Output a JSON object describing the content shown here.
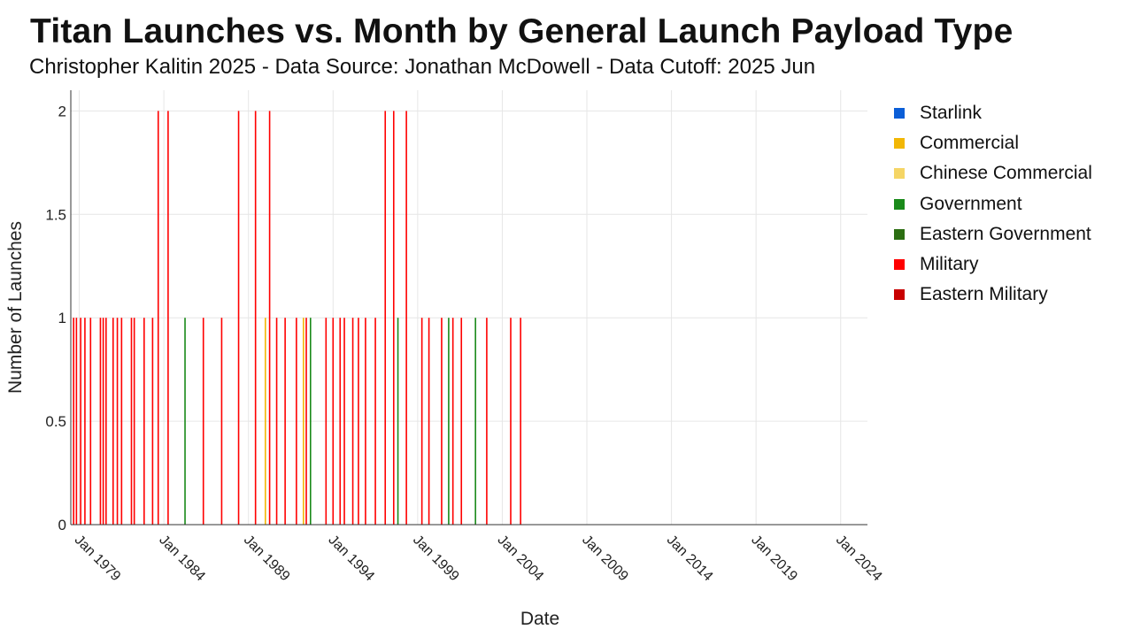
{
  "chart_data": {
    "type": "bar",
    "title": "Titan Launches vs. Month by General Launch Payload Type",
    "subtitle": "Christopher Kalitin 2025 - Data Source: Jonathan McDowell - Data Cutoff: 2025 Jun",
    "xlabel": "Date",
    "ylabel": "Number of Launches",
    "xlim": [
      "1978-07",
      "2025-08"
    ],
    "ylim": [
      0,
      2.1
    ],
    "x_ticks": [
      "Jan 1979",
      "Jan 1984",
      "Jan 1989",
      "Jan 1994",
      "Jan 1999",
      "Jan 2004",
      "Jan 2009",
      "Jan 2014",
      "Jan 2019",
      "Jan 2024"
    ],
    "y_ticks": [
      "0",
      "0.5",
      "1",
      "1.5",
      "2"
    ],
    "grid": true,
    "legend_position": "right",
    "stacked": true,
    "legend": [
      {
        "name": "Starlink",
        "color": "#0b5ed7"
      },
      {
        "name": "Commercial",
        "color": "#f2b705"
      },
      {
        "name": "Chinese Commercial",
        "color": "#f5d565"
      },
      {
        "name": "Government",
        "color": "#1a8a1a"
      },
      {
        "name": "Eastern Government",
        "color": "#2c6e12"
      },
      {
        "name": "Military",
        "color": "#ff0000"
      },
      {
        "name": "Eastern Military",
        "color": "#c80000"
      }
    ],
    "series": [
      {
        "name": "Military",
        "color": "#ff0000",
        "points": [
          {
            "x": "1978-09",
            "y": 1
          },
          {
            "x": "1978-11",
            "y": 1
          },
          {
            "x": "1979-02",
            "y": 1
          },
          {
            "x": "1979-05",
            "y": 1
          },
          {
            "x": "1979-09",
            "y": 1
          },
          {
            "x": "1980-04",
            "y": 1
          },
          {
            "x": "1980-06",
            "y": 1
          },
          {
            "x": "1980-08",
            "y": 1
          },
          {
            "x": "1981-01",
            "y": 1
          },
          {
            "x": "1981-04",
            "y": 1
          },
          {
            "x": "1981-07",
            "y": 1
          },
          {
            "x": "1982-02",
            "y": 1
          },
          {
            "x": "1982-04",
            "y": 1
          },
          {
            "x": "1982-11",
            "y": 1
          },
          {
            "x": "1983-05",
            "y": 1
          },
          {
            "x": "1983-09",
            "y": 2
          },
          {
            "x": "1984-04",
            "y": 2
          },
          {
            "x": "1986-05",
            "y": 1
          },
          {
            "x": "1987-06",
            "y": 1
          },
          {
            "x": "1988-06",
            "y": 2
          },
          {
            "x": "1989-06",
            "y": 2
          },
          {
            "x": "1990-04",
            "y": 2
          },
          {
            "x": "1990-09",
            "y": 1
          },
          {
            "x": "1991-03",
            "y": 1
          },
          {
            "x": "1991-11",
            "y": 1
          },
          {
            "x": "1992-06",
            "y": 1
          },
          {
            "x": "1993-08",
            "y": 1
          },
          {
            "x": "1994-01",
            "y": 1
          },
          {
            "x": "1994-06",
            "y": 1
          },
          {
            "x": "1994-09",
            "y": 1
          },
          {
            "x": "1995-03",
            "y": 1
          },
          {
            "x": "1995-07",
            "y": 1
          },
          {
            "x": "1995-12",
            "y": 1
          },
          {
            "x": "1996-07",
            "y": 1
          },
          {
            "x": "1997-02",
            "y": 2
          },
          {
            "x": "1997-08",
            "y": 2
          },
          {
            "x": "1998-05",
            "y": 2
          },
          {
            "x": "1999-04",
            "y": 1
          },
          {
            "x": "1999-09",
            "y": 1
          },
          {
            "x": "2000-06",
            "y": 1
          },
          {
            "x": "2001-02",
            "y": 1
          },
          {
            "x": "2001-08",
            "y": 1
          },
          {
            "x": "2003-02",
            "y": 1
          },
          {
            "x": "2004-07",
            "y": 1
          },
          {
            "x": "2005-02",
            "y": 1
          }
        ]
      },
      {
        "name": "Government",
        "color": "#1a8a1a",
        "points": [
          {
            "x": "1985-04",
            "y": 1
          },
          {
            "x": "1992-09",
            "y": 1
          },
          {
            "x": "1997-11",
            "y": 1
          },
          {
            "x": "2000-11",
            "y": 1
          },
          {
            "x": "2002-06",
            "y": 1
          }
        ]
      },
      {
        "name": "Commercial",
        "color": "#f2b705",
        "points": [
          {
            "x": "1990-01",
            "y": 1
          },
          {
            "x": "1992-04",
            "y": 1
          }
        ]
      }
    ]
  }
}
